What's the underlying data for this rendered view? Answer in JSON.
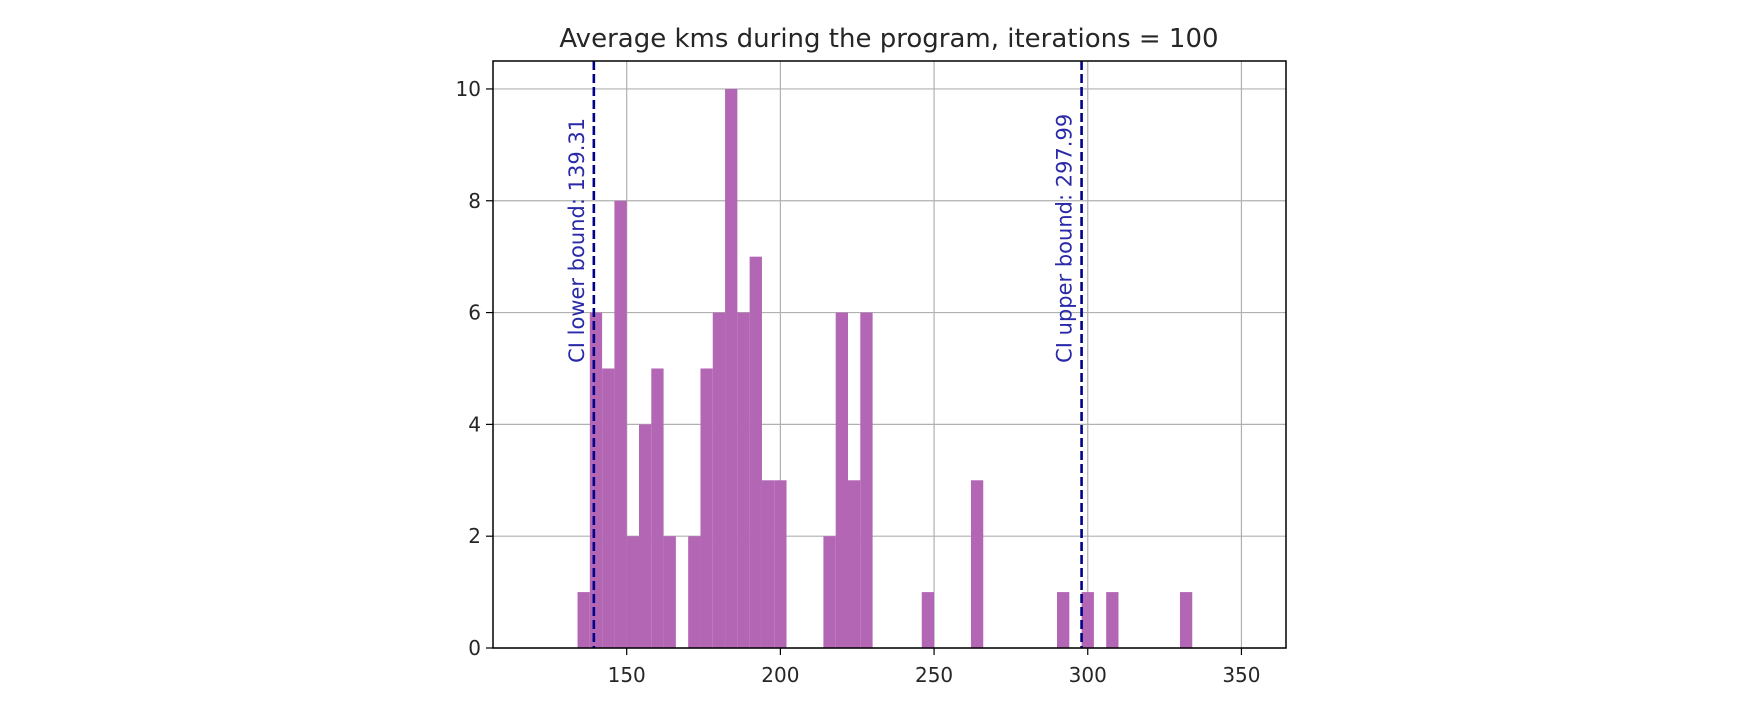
{
  "chart_data": {
    "type": "bar",
    "title": "Average kms during the program, iterations = 100",
    "xlabel": "",
    "ylabel": "",
    "xlim": [
      106.5,
      364.5
    ],
    "ylim": [
      0,
      10.5
    ],
    "x_ticks": [
      150,
      200,
      250,
      300,
      350
    ],
    "y_ticks": [
      0,
      2,
      4,
      6,
      8,
      10
    ],
    "grid": true,
    "bar_color": "#b366b3",
    "bin_width": 4,
    "bins": [
      {
        "x": 134,
        "count": 1
      },
      {
        "x": 138,
        "count": 6
      },
      {
        "x": 142,
        "count": 5
      },
      {
        "x": 146,
        "count": 8
      },
      {
        "x": 150,
        "count": 2
      },
      {
        "x": 154,
        "count": 4
      },
      {
        "x": 158,
        "count": 5
      },
      {
        "x": 162,
        "count": 2
      },
      {
        "x": 170,
        "count": 2
      },
      {
        "x": 174,
        "count": 5
      },
      {
        "x": 178,
        "count": 6
      },
      {
        "x": 182,
        "count": 10
      },
      {
        "x": 186,
        "count": 6
      },
      {
        "x": 190,
        "count": 7
      },
      {
        "x": 194,
        "count": 3
      },
      {
        "x": 198,
        "count": 3
      },
      {
        "x": 214,
        "count": 2
      },
      {
        "x": 218,
        "count": 6
      },
      {
        "x": 222,
        "count": 3
      },
      {
        "x": 226,
        "count": 6
      },
      {
        "x": 246,
        "count": 1
      },
      {
        "x": 262,
        "count": 3
      },
      {
        "x": 290,
        "count": 1
      },
      {
        "x": 298,
        "count": 1
      },
      {
        "x": 306,
        "count": 1
      },
      {
        "x": 330,
        "count": 1
      }
    ],
    "annotations": [
      {
        "name": "ci-lower",
        "x": 139.31,
        "label": "CI lower bound: 139.31",
        "color": "#00008b",
        "style": "dashed"
      },
      {
        "name": "ci-upper",
        "x": 297.99,
        "label": "CI upper bound: 297.99",
        "color": "#00008b",
        "style": "dashed"
      }
    ]
  }
}
